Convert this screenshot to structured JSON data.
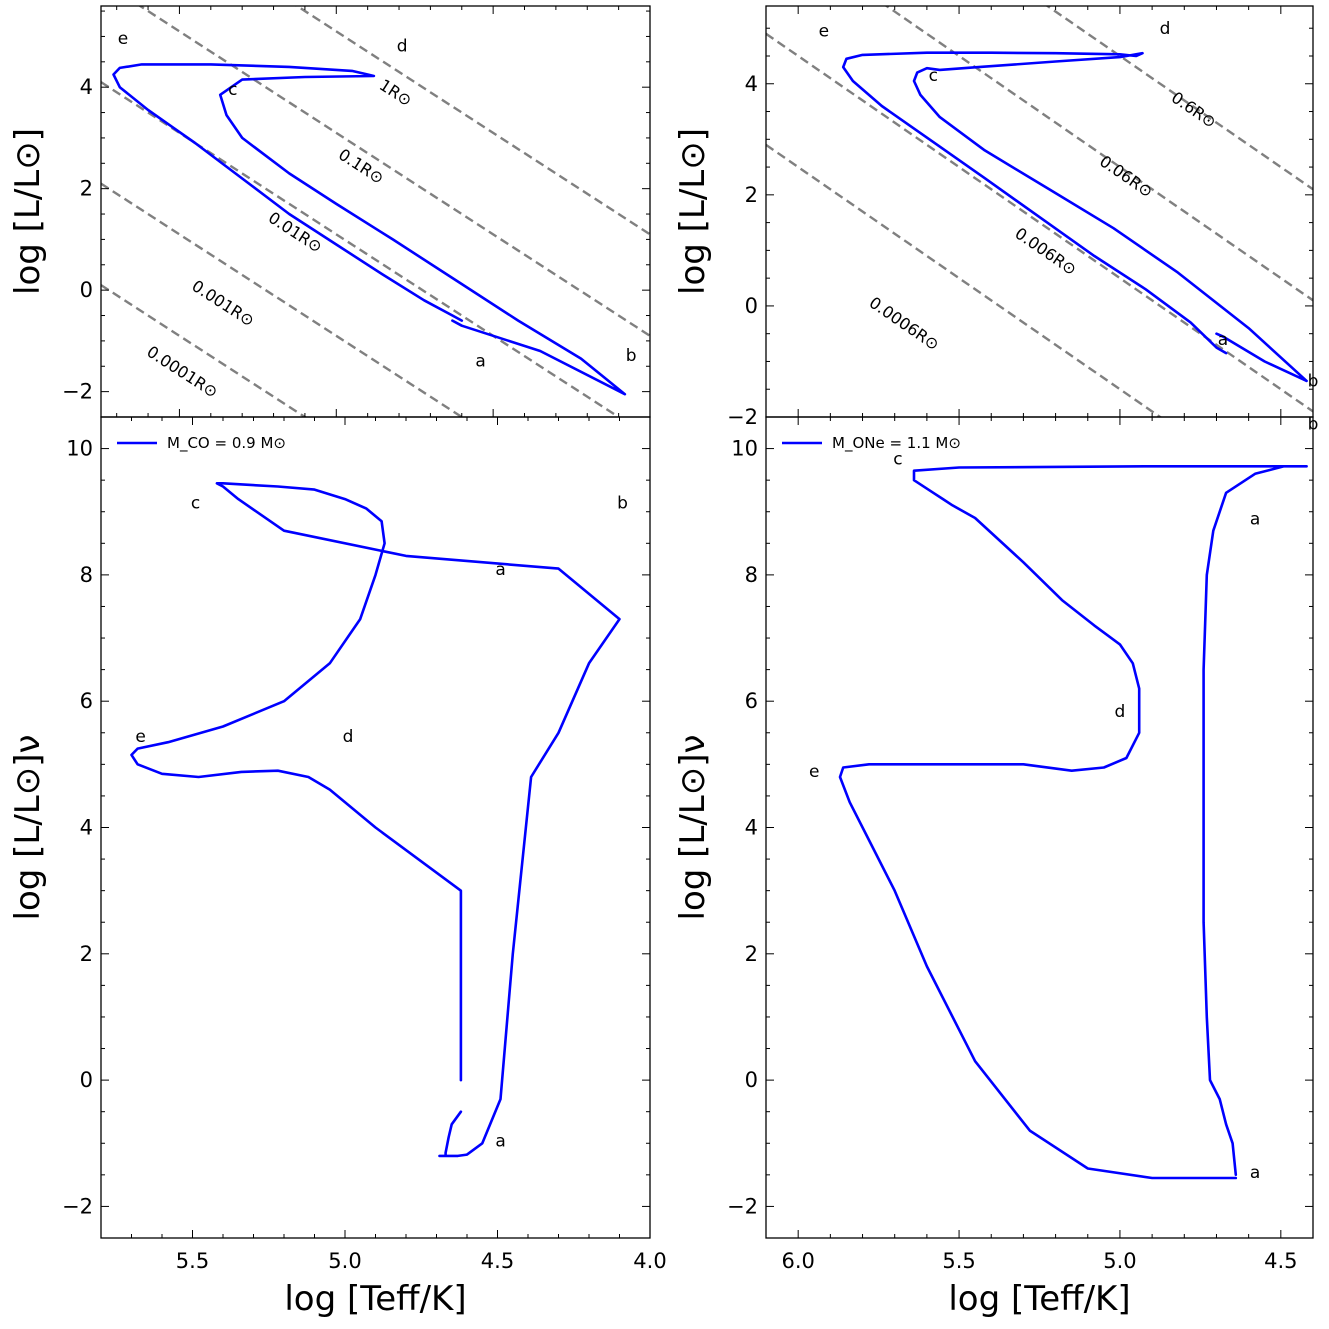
{
  "chart_data": [
    {
      "panel": "top-left",
      "type": "line",
      "ylabel": "log [L/L⊙]",
      "xlim": [
        5.75,
        4.0
      ],
      "ylim": [
        -2.5,
        5.6
      ],
      "xticks": [
        5.5,
        5.0,
        4.5,
        4.0
      ],
      "yticks": [
        -2,
        0,
        2,
        4
      ],
      "ytick_labels": [
        "−2",
        "0",
        "2",
        "4"
      ],
      "show_xtick_labels": false,
      "series": [
        {
          "name": "track",
          "color": "#0000ff",
          "x": [
            4.6,
            4.63,
            4.72,
            4.85,
            5.0,
            5.15,
            5.3,
            5.45,
            5.6,
            5.69,
            5.71,
            5.69,
            5.62,
            5.4,
            5.15,
            4.95,
            4.9,
            4.88,
            5.1,
            5.3,
            5.37,
            5.35,
            5.3,
            5.15,
            5.0,
            4.82,
            4.62,
            4.42,
            4.22,
            4.08,
            4.35,
            4.6,
            4.63
          ],
          "y": [
            -0.6,
            -0.5,
            -0.2,
            0.3,
            0.9,
            1.5,
            2.2,
            2.9,
            3.55,
            4.0,
            4.25,
            4.38,
            4.45,
            4.45,
            4.4,
            4.32,
            4.25,
            4.22,
            4.2,
            4.15,
            3.85,
            3.45,
            3.0,
            2.3,
            1.7,
            1.0,
            0.2,
            -0.6,
            -1.35,
            -2.05,
            -1.2,
            -0.7,
            -0.6
          ]
        }
      ],
      "radius_lines": [
        {
          "label": "0.0001R⊙",
          "y_at_5_75": 0.1
        },
        {
          "label": "0.001R⊙",
          "y_at_5_75": 2.1
        },
        {
          "label": "0.01R⊙",
          "y_at_5_75": 4.1
        },
        {
          "label": "0.1R⊙",
          "y_at_5_75": 6.1
        },
        {
          "label": "1R⊙",
          "y_at_5_75": 8.1
        }
      ],
      "radius_slope": 4.0,
      "annotations": [
        {
          "text": "e",
          "x": 5.68,
          "y": 4.85
        },
        {
          "text": "c",
          "x": 5.33,
          "y": 3.85
        },
        {
          "text": "d",
          "x": 4.79,
          "y": 4.7
        },
        {
          "text": "a",
          "x": 4.54,
          "y": -1.5
        },
        {
          "text": "b",
          "x": 4.06,
          "y": -1.4
        }
      ],
      "radius_label_positions": [
        {
          "x": 5.5,
          "y": -1.7,
          "label_index": 0
        },
        {
          "x": 5.37,
          "y": -0.35,
          "label_index": 1
        },
        {
          "x": 5.14,
          "y": 1.05,
          "label_index": 2
        },
        {
          "x": 4.93,
          "y": 2.35,
          "label_index": 3
        },
        {
          "x": 4.82,
          "y": 3.8,
          "label_index": 4
        }
      ]
    },
    {
      "panel": "top-right",
      "type": "line",
      "ylabel": "log [L/L⊙]",
      "xlim": [
        6.1,
        4.4
      ],
      "ylim": [
        -2.0,
        5.4
      ],
      "xticks": [
        6.0,
        5.5,
        5.0,
        4.5
      ],
      "yticks": [
        -2,
        0,
        2,
        4
      ],
      "ytick_labels": [
        "−2",
        "0",
        "2",
        "4"
      ],
      "show_xtick_labels": false,
      "series": [
        {
          "name": "track",
          "color": "#0000ff",
          "x": [
            4.67,
            4.7,
            4.78,
            4.92,
            5.08,
            5.25,
            5.42,
            5.58,
            5.74,
            5.83,
            5.86,
            5.85,
            5.8,
            5.6,
            5.4,
            5.2,
            5.0,
            4.95,
            4.93,
            5.0,
            5.2,
            5.44,
            5.56,
            5.6,
            5.63,
            5.64,
            5.62,
            5.56,
            5.42,
            5.22,
            5.02,
            4.82,
            4.6,
            4.42,
            4.55,
            4.68,
            4.7
          ],
          "y": [
            -0.85,
            -0.75,
            -0.3,
            0.3,
            0.9,
            1.6,
            2.3,
            2.95,
            3.6,
            4.05,
            4.3,
            4.45,
            4.52,
            4.56,
            4.56,
            4.55,
            4.53,
            4.5,
            4.55,
            4.48,
            4.4,
            4.3,
            4.25,
            4.28,
            4.2,
            4.05,
            3.8,
            3.4,
            2.8,
            2.1,
            1.4,
            0.6,
            -0.4,
            -1.35,
            -1.0,
            -0.55,
            -0.5
          ]
        }
      ],
      "radius_lines": [
        {
          "label": "0.0006R⊙",
          "y_at_6_1": 2.9
        },
        {
          "label": "0.006R⊙",
          "y_at_6_1": 4.9
        },
        {
          "label": "0.06R⊙",
          "y_at_6_1": 6.9
        },
        {
          "label": "0.6R⊙",
          "y_at_6_1": 8.9
        }
      ],
      "radius_slope": 4.0,
      "annotations": [
        {
          "text": "e",
          "x": 5.92,
          "y": 4.85
        },
        {
          "text": "c",
          "x": 5.58,
          "y": 4.05
        },
        {
          "text": "d",
          "x": 4.86,
          "y": 4.9
        },
        {
          "text": "a",
          "x": 4.68,
          "y": -0.7
        },
        {
          "text": "b",
          "x": 4.4,
          "y": -1.45
        }
      ],
      "radius_label_positions": [
        {
          "x": 5.68,
          "y": -0.4,
          "label_index": 0
        },
        {
          "x": 5.24,
          "y": 0.9,
          "label_index": 1
        },
        {
          "x": 4.99,
          "y": 2.25,
          "label_index": 2
        },
        {
          "x": 4.78,
          "y": 3.45,
          "label_index": 3
        }
      ]
    },
    {
      "panel": "bottom-left",
      "type": "line",
      "xlabel": "log [Teff/K]",
      "ylabel": "log [L/L⊙]ν",
      "xlim": [
        5.8,
        4.0
      ],
      "ylim": [
        -2.5,
        10.5
      ],
      "xticks": [
        5.5,
        5.0,
        4.5,
        4.0
      ],
      "xtick_labels": [
        "5.5",
        "5.0",
        "4.5",
        "4.0"
      ],
      "yticks": [
        -2,
        0,
        2,
        4,
        6,
        8,
        10
      ],
      "ytick_labels": [
        "−2",
        "0",
        "2",
        "4",
        "6",
        "8",
        "10"
      ],
      "show_xtick_labels": true,
      "legend": {
        "label": "M_CO = 0.9 M⊙",
        "main": "M",
        "sub": "CO",
        "rest": " = 0.9 ",
        "unit": "M",
        "unitsub": "⊙",
        "placement": "top-left"
      },
      "series": [
        {
          "name": "M_CO = 0.9 M⊙",
          "color": "#0000ff",
          "x": [
            4.62,
            4.65,
            4.66,
            4.67,
            4.67,
            4.68,
            4.68,
            4.69,
            4.68,
            4.66,
            4.63,
            4.6,
            4.55,
            4.49,
            4.45,
            4.39,
            4.3,
            4.2,
            4.1,
            4.3,
            4.8,
            5.2,
            5.35,
            5.4,
            5.42,
            5.4,
            5.33,
            5.22,
            5.1,
            5.0,
            4.93,
            4.88,
            4.87,
            4.9,
            4.95,
            5.05,
            5.2,
            5.4,
            5.58,
            5.68,
            5.7,
            5.68,
            5.6,
            5.48,
            5.34,
            5.22,
            5.12,
            5.05,
            4.9,
            4.62,
            4.62,
            4.62
          ],
          "y": [
            -0.5,
            -0.7,
            -0.9,
            -1.15,
            -1.2,
            -1.2,
            -1.2,
            -1.2,
            -1.2,
            -1.2,
            -1.2,
            -1.18,
            -1.0,
            -0.3,
            2.0,
            4.8,
            5.5,
            6.6,
            7.3,
            8.1,
            8.3,
            8.7,
            9.2,
            9.4,
            9.45,
            9.45,
            9.43,
            9.4,
            9.35,
            9.2,
            9.05,
            8.85,
            8.5,
            8.0,
            7.3,
            6.6,
            6.0,
            5.6,
            5.35,
            5.25,
            5.15,
            5.0,
            4.85,
            4.8,
            4.88,
            4.9,
            4.8,
            4.6,
            4.0,
            3.0,
            1.5,
            0.0
          ],
          "note": "order rearranged for drawing"
        }
      ],
      "annotations": [
        {
          "text": "c",
          "x": 5.49,
          "y": 9.05
        },
        {
          "text": "b",
          "x": 4.09,
          "y": 9.05
        },
        {
          "text": "a",
          "x": 4.49,
          "y": 8.0
        },
        {
          "text": "e",
          "x": 5.67,
          "y": 5.35
        },
        {
          "text": "d",
          "x": 4.99,
          "y": 5.35
        },
        {
          "text": "a",
          "x": 4.49,
          "y": -1.05
        }
      ]
    },
    {
      "panel": "bottom-right",
      "type": "line",
      "xlabel": "log [Teff/K]",
      "ylabel": "log [L/L⊙]ν",
      "xlim": [
        6.1,
        4.4
      ],
      "ylim": [
        -2.5,
        10.5
      ],
      "xticks": [
        6.0,
        5.5,
        5.0,
        4.5
      ],
      "xtick_labels": [
        "6.0",
        "5.5",
        "5.0",
        "4.5"
      ],
      "yticks": [
        -2,
        0,
        2,
        4,
        6,
        8,
        10
      ],
      "ytick_labels": [
        "−2",
        "0",
        "2",
        "4",
        "6",
        "8",
        "10"
      ],
      "show_xtick_labels": true,
      "legend": {
        "label": "M_ONe = 1.1 M⊙",
        "main": "M",
        "sub": "ONe",
        "rest": " = 1.1 ",
        "unit": "M",
        "unitsub": "⊙",
        "placement": "top-left"
      },
      "series": [
        {
          "name": "M_ONe = 1.1 M⊙",
          "color": "#0000ff",
          "x": [
            4.64,
            4.64,
            4.65,
            4.67,
            4.69,
            4.72,
            4.73,
            4.74,
            4.74,
            4.74,
            4.73,
            4.71,
            4.67,
            4.58,
            4.49,
            4.42,
            4.9,
            5.5,
            5.64,
            5.64,
            5.58,
            5.55,
            5.52,
            5.45,
            5.3,
            5.18,
            5.08,
            5.0,
            4.96,
            4.94,
            4.94,
            4.98,
            5.05,
            5.15,
            5.3,
            5.55,
            5.78,
            5.86,
            5.87,
            5.84,
            5.78,
            5.7,
            5.6,
            5.45,
            5.28,
            5.1,
            4.9,
            4.64
          ],
          "y": [
            -1.5,
            -1.5,
            -1.0,
            -0.7,
            -0.3,
            0.0,
            1.0,
            2.5,
            4.2,
            6.5,
            8.0,
            8.7,
            9.3,
            9.6,
            9.72,
            9.72,
            9.72,
            9.7,
            9.65,
            9.5,
            9.3,
            9.2,
            9.1,
            8.9,
            8.2,
            7.6,
            7.2,
            6.9,
            6.6,
            6.2,
            5.5,
            5.1,
            4.95,
            4.9,
            5.0,
            5.0,
            5.0,
            4.95,
            4.8,
            4.4,
            3.8,
            3.0,
            1.8,
            0.3,
            -0.8,
            -1.4,
            -1.55,
            -1.55
          ],
          "note": "order rearranged for drawing"
        }
      ],
      "annotations": [
        {
          "text": "b",
          "x": 4.4,
          "y": 10.3
        },
        {
          "text": "c",
          "x": 5.69,
          "y": 9.75
        },
        {
          "text": "a",
          "x": 4.58,
          "y": 8.8
        },
        {
          "text": "d",
          "x": 5.0,
          "y": 5.75
        },
        {
          "text": "e",
          "x": 5.95,
          "y": 4.8
        },
        {
          "text": "a",
          "x": 4.58,
          "y": -1.55
        }
      ]
    }
  ]
}
